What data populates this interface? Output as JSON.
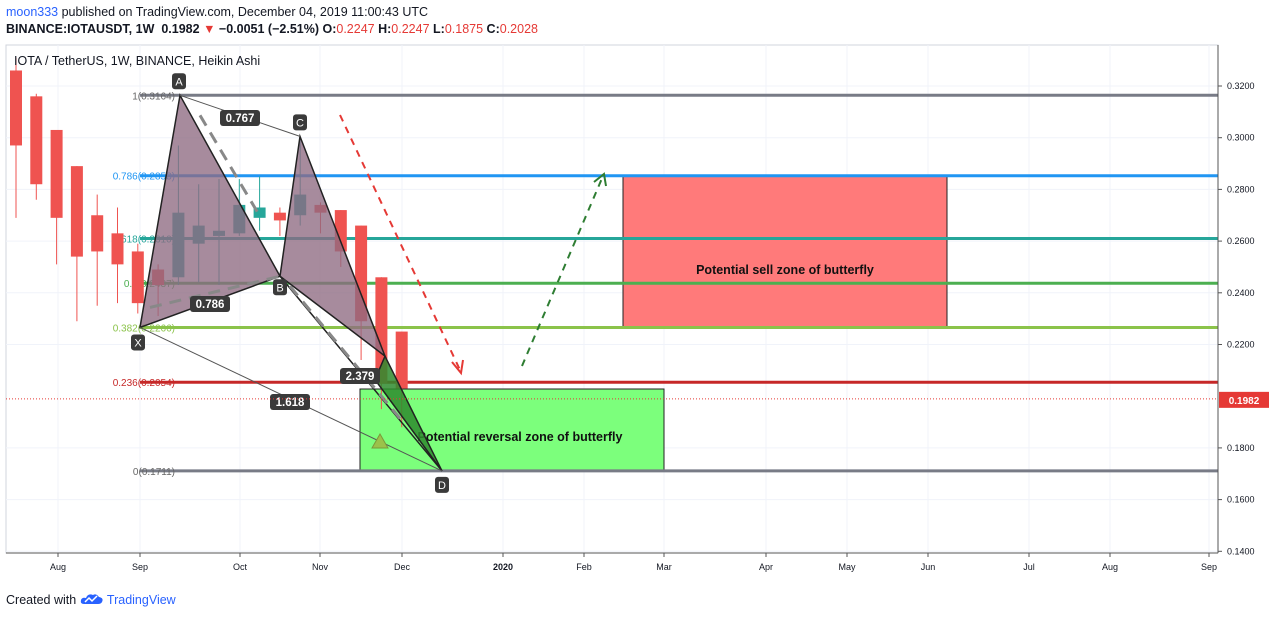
{
  "header": {
    "author": "moon333",
    "published_text": "published on TradingView.com, December 04, 2019 11:00:43 UTC",
    "symbol": "BINANCE:IOTAUSDT, 1W",
    "price": "0.1982",
    "arrow": "▼",
    "change": "−0.0051 (−2.51%)",
    "o_label": "O:",
    "o_value": "0.2247",
    "h_label": "H:",
    "h_value": "0.2247",
    "l_label": "L:",
    "l_value": "0.1875",
    "c_label": "C:",
    "c_value": "0.2028"
  },
  "footer": {
    "created_with": "Created with",
    "brand": "TradingView"
  },
  "colors": {
    "up": "#26a69a",
    "down": "#ef5350",
    "fib_top": "#787b86",
    "fib_786": "#2196f3",
    "fib_618": "#26a69a",
    "fib_5": "#4caf50",
    "fib_382": "#8bc34a",
    "fib_236": "#c62828",
    "sell_zone": "#ff7a7a",
    "reversal_zone": "#7cff7c",
    "pattern_fill": "#8e6a82"
  },
  "chart_data": {
    "type": "candlestick",
    "title": "IOTA / TetherUS, 1W, BINANCE, Heikin Ashi",
    "x_axis_labels": [
      "Aug",
      "Sep",
      "Oct",
      "Nov",
      "Dec",
      "2020",
      "Feb",
      "Mar",
      "Apr",
      "May",
      "Jun",
      "Jul",
      "Aug",
      "Sep"
    ],
    "y_ticks": [
      "0.3200",
      "0.3000",
      "0.2800",
      "0.2600",
      "0.2400",
      "0.2200",
      "0.1800",
      "0.1600",
      "0.1400"
    ],
    "y_range": [
      0.139,
      0.328
    ],
    "last_price": "0.1982",
    "candles": [
      {
        "week": 1,
        "open": 0.326,
        "close": 0.297,
        "high": 0.331,
        "low": 0.269
      },
      {
        "week": 2,
        "open": 0.316,
        "close": 0.282,
        "high": 0.317,
        "low": 0.276
      },
      {
        "week": 3,
        "open": 0.303,
        "close": 0.269,
        "high": 0.303,
        "low": 0.251
      },
      {
        "week": 4,
        "open": 0.289,
        "close": 0.254,
        "high": 0.289,
        "low": 0.229
      },
      {
        "week": 5,
        "open": 0.27,
        "close": 0.256,
        "high": 0.278,
        "low": 0.235
      },
      {
        "week": 6,
        "open": 0.263,
        "close": 0.251,
        "high": 0.273,
        "low": 0.236
      },
      {
        "week": 7,
        "open": 0.256,
        "close": 0.236,
        "high": 0.259,
        "low": 0.232
      },
      {
        "week": 8,
        "open": 0.249,
        "close": 0.243,
        "high": 0.251,
        "low": 0.231
      },
      {
        "week": 9,
        "open": 0.246,
        "close": 0.271,
        "high": 0.297,
        "low": 0.243
      },
      {
        "week": 10,
        "open": 0.259,
        "close": 0.266,
        "high": 0.282,
        "low": 0.244
      },
      {
        "week": 11,
        "open": 0.262,
        "close": 0.264,
        "high": 0.284,
        "low": 0.243
      },
      {
        "week": 12,
        "open": 0.263,
        "close": 0.274,
        "high": 0.284,
        "low": 0.262
      },
      {
        "week": 13,
        "open": 0.269,
        "close": 0.273,
        "high": 0.285,
        "low": 0.264
      },
      {
        "week": 14,
        "open": 0.271,
        "close": 0.268,
        "high": 0.273,
        "low": 0.262
      },
      {
        "week": 15,
        "open": 0.27,
        "close": 0.278,
        "high": 0.3,
        "low": 0.266
      },
      {
        "week": 16,
        "open": 0.274,
        "close": 0.271,
        "high": 0.275,
        "low": 0.263
      },
      {
        "week": 17,
        "open": 0.272,
        "close": 0.256,
        "high": 0.272,
        "low": 0.25
      },
      {
        "week": 18,
        "open": 0.266,
        "close": 0.229,
        "high": 0.266,
        "low": 0.214
      },
      {
        "week": 19,
        "open": 0.246,
        "close": 0.205,
        "high": 0.246,
        "low": 0.195
      },
      {
        "week": 20,
        "open": 0.225,
        "close": 0.203,
        "high": 0.225,
        "low": 0.188
      }
    ],
    "fib_levels": [
      {
        "ratio": "1",
        "label": "1(0.3164)",
        "price": 0.3164
      },
      {
        "ratio": "0.786",
        "label": "0.786(0.2853)",
        "price": 0.2853
      },
      {
        "ratio": "0.618",
        "label": "0.618(0.2610)",
        "price": 0.261
      },
      {
        "ratio": "0.5",
        "label": "0.5(0.2437)",
        "price": 0.2437
      },
      {
        "ratio": "0.382",
        "label": "0.382(0.2266)",
        "price": 0.2266
      },
      {
        "ratio": "0.236",
        "label": "0.236(0.2054)",
        "price": 0.2054
      },
      {
        "ratio": "0",
        "label": "0(0.1711)",
        "price": 0.1711
      }
    ],
    "pattern_points": [
      "X",
      "A",
      "B",
      "C",
      "D"
    ],
    "pattern_ratios": [
      "0.767",
      "0.786",
      "2.379",
      "1.618"
    ],
    "zones": {
      "sell": "Potential sell zone of butterfly",
      "reversal": "Potential reversal zone of butterfly"
    }
  }
}
